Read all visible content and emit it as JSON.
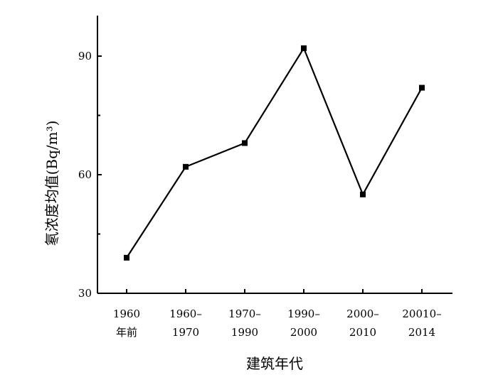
{
  "chart_data": {
    "type": "line",
    "title": "",
    "xlabel": "建筑年代",
    "ylabel": "氡浓度均值(Bq/m³)",
    "categories": [
      [
        "1960",
        "年前"
      ],
      [
        "1960–",
        "1970"
      ],
      [
        "1970–",
        "1990"
      ],
      [
        "1990–",
        "2000"
      ],
      [
        "2000–",
        "2010"
      ],
      [
        "20010–",
        "2014"
      ]
    ],
    "series": [
      {
        "values": [
          39,
          62,
          68,
          92,
          55,
          82
        ]
      }
    ],
    "ylim": [
      30,
      100
    ],
    "yticks": [
      30,
      60,
      90
    ],
    "grid": false,
    "marker": "square",
    "colors": {
      "line": "#000000",
      "marker": "#000000",
      "axis": "#000000"
    }
  }
}
